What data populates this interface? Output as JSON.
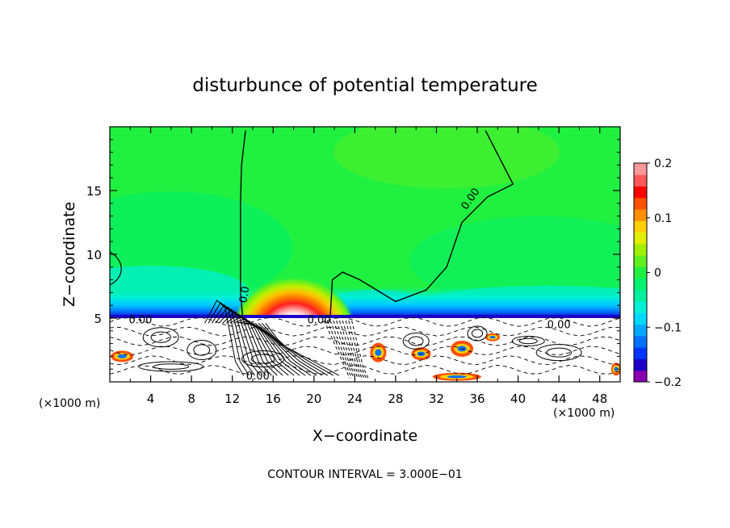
{
  "chart_data": {
    "type": "heatmap",
    "title": "disturbunce of potential temperature",
    "xlabel": "X−coordinate",
    "ylabel": "Z−coordinate",
    "x_unit_left": "(×1000 m)",
    "x_unit_right": "(×1000 m)",
    "footer": "CONTOUR INTERVAL = 3.000E−01",
    "xlim": [
      0,
      50
    ],
    "ylim": [
      0,
      20
    ],
    "x_ticks": [
      4,
      8,
      12,
      16,
      20,
      24,
      28,
      32,
      36,
      40,
      44,
      48
    ],
    "x_tick_labels": [
      "4",
      "8",
      "12",
      "16",
      "20",
      "24",
      "28",
      "32",
      "36",
      "40",
      "44",
      "48"
    ],
    "y_ticks": [
      5,
      10,
      15
    ],
    "y_tick_labels": [
      "5",
      "10",
      "15"
    ],
    "colorbar": {
      "range": [
        -0.2,
        0.2
      ],
      "tick_values": [
        0.2,
        0.1,
        0,
        -0.1,
        -0.2
      ],
      "tick_labels": [
        "0.2",
        "0.1",
        "0",
        "−0.1",
        "−0.2"
      ],
      "colors": [
        "#8a00b0",
        "#1a00c8",
        "#0036ff",
        "#0070ff",
        "#00a8ff",
        "#00d8ff",
        "#00f0d8",
        "#00f0a0",
        "#00f070",
        "#20f040",
        "#60f020",
        "#a0f000",
        "#e0f000",
        "#ffd000",
        "#ff9000",
        "#ff5000",
        "#ff0000",
        "#ff5858",
        "#ff9898"
      ]
    },
    "contour_labels": [
      "0.00",
      "0.0",
      "0.00",
      "0.00",
      "0.00",
      "0.00"
    ],
    "background_value": 0.0,
    "features": [
      {
        "name": "warm anomaly",
        "x": 18.0,
        "z": 6.5,
        "value": 0.2
      },
      {
        "name": "cool layer",
        "x_range": [
          0,
          50
        ],
        "z": 5.2,
        "value": -0.12
      }
    ],
    "zero_contour": [
      [
        13.0,
        5.2
      ],
      [
        12.8,
        7
      ],
      [
        12.8,
        10
      ],
      [
        12.8,
        14
      ],
      [
        12.9,
        17
      ],
      [
        13.3,
        19.7
      ]
    ],
    "zero_contour_2": [
      [
        21.6,
        5.2
      ],
      [
        21.8,
        8
      ],
      [
        22.8,
        8.6
      ],
      [
        24.5,
        8
      ],
      [
        28,
        6.3
      ],
      [
        31,
        7.2
      ],
      [
        33,
        9
      ],
      [
        34.5,
        12.5
      ],
      [
        37,
        14.5
      ],
      [
        39.5,
        15.5
      ],
      [
        36.8,
        19.7
      ]
    ]
  }
}
